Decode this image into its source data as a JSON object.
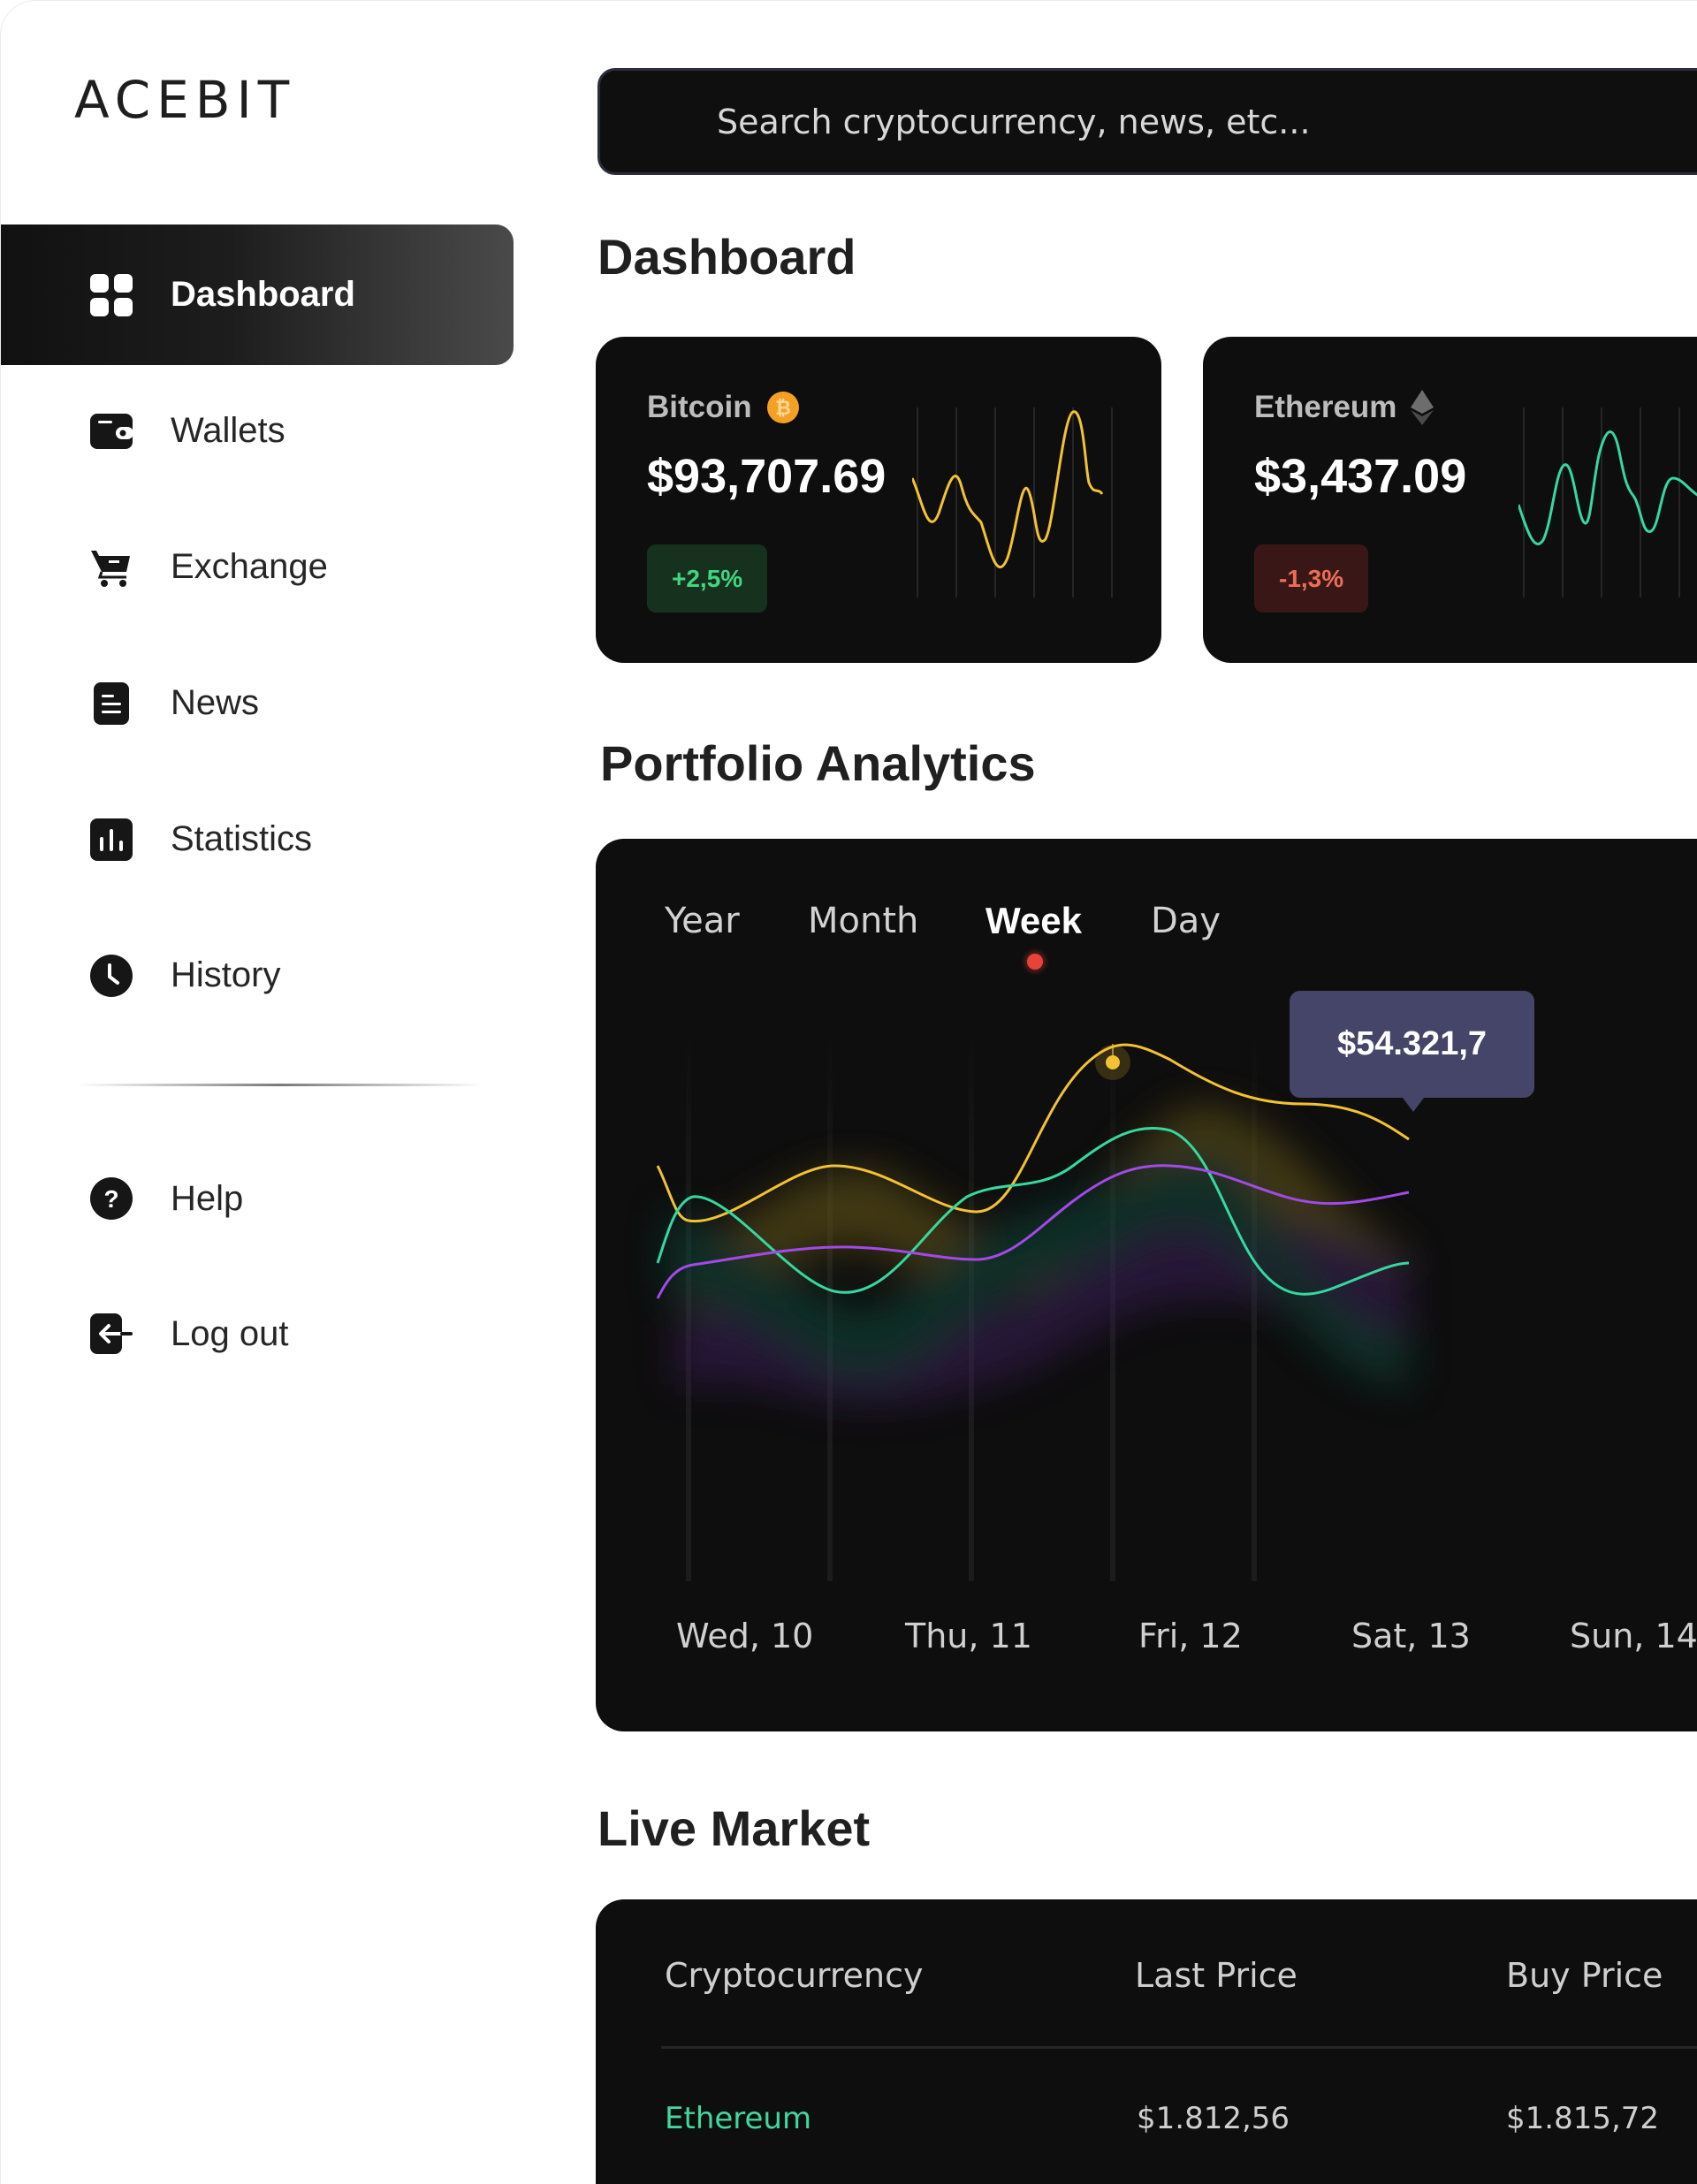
{
  "app": {
    "logo": "ACEBIT"
  },
  "sidebar": {
    "items": [
      {
        "label": "Dashboard",
        "icon": "grid-icon",
        "active": true
      },
      {
        "label": "Wallets",
        "icon": "wallet-icon"
      },
      {
        "label": "Exchange",
        "icon": "cart-icon"
      },
      {
        "label": "News",
        "icon": "document-icon"
      },
      {
        "label": "Statistics",
        "icon": "bar-chart-icon"
      },
      {
        "label": "History",
        "icon": "clock-icon"
      }
    ],
    "secondary": [
      {
        "label": "Help",
        "icon": "question-icon"
      },
      {
        "label": "Log out",
        "icon": "logout-icon"
      }
    ]
  },
  "search": {
    "placeholder": "Search cryptocurrency, news, etc..."
  },
  "dashboard": {
    "title": "Dashboard",
    "coins": [
      {
        "name": "Bitcoin",
        "icon": "bitcoin-icon",
        "price": "$93,707.69",
        "change": "+2,5%",
        "direction": "up",
        "color": "#f5c518"
      },
      {
        "name": "Ethereum",
        "icon": "ethereum-icon",
        "price": "$3,437.09",
        "change": "-1,3%",
        "direction": "down",
        "color": "#3fd8a0"
      }
    ]
  },
  "analytics": {
    "title": "Portfolio Analytics",
    "tabs": [
      "Year",
      "Month",
      "Week",
      "Day"
    ],
    "active_tab": "Week",
    "tooltip": "$54.321,7",
    "x_labels": [
      "Wed, 10",
      "Thu, 11",
      "Fri, 12",
      "Sat, 13",
      "Sun, 14"
    ],
    "colors": {
      "yellow": "#f2c232",
      "green": "#35d8a0",
      "purple": "#a24ae8",
      "accent_dot": "#e8433a",
      "tooltip_bg": "#45456a"
    }
  },
  "market": {
    "title": "Live Market",
    "columns": [
      "Cryptocurrency",
      "Last Price",
      "Buy Price"
    ],
    "rows": [
      {
        "name": "Ethereum",
        "last": "$1.812,56",
        "buy": "$1.815,72"
      }
    ]
  }
}
